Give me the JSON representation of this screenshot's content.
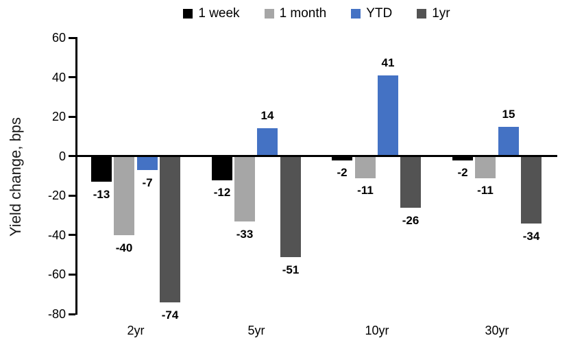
{
  "chart_data": {
    "type": "bar",
    "ylabel": "Yield change, bps",
    "categories": [
      "2yr",
      "5yr",
      "10yr",
      "30yr"
    ],
    "series": [
      {
        "name": "1 week",
        "color": "#000000",
        "values": [
          -13,
          -12,
          -2,
          -2
        ]
      },
      {
        "name": "1 month",
        "color": "#A6A6A6",
        "values": [
          -40,
          -33,
          -11,
          -11
        ]
      },
      {
        "name": "YTD",
        "color": "#4472C4",
        "values": [
          -7,
          14,
          41,
          15
        ]
      },
      {
        "name": "1yr",
        "color": "#535353",
        "values": [
          -74,
          -51,
          -26,
          -34
        ]
      }
    ],
    "yticks": [
      60,
      40,
      20,
      0,
      -20,
      -40,
      -60,
      -80
    ],
    "ylim": [
      -80,
      60
    ],
    "legend_position": "top",
    "grid": false,
    "data_labels": true
  }
}
